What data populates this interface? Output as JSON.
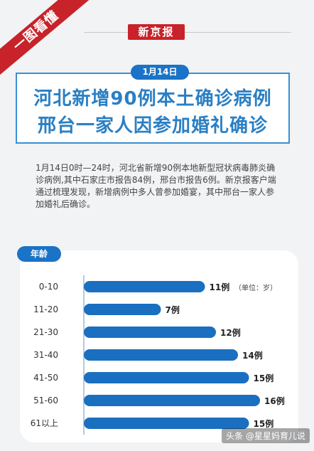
{
  "header": {
    "ribbon_text": "一图看懂",
    "masthead": "新京报",
    "date": "1月14日"
  },
  "headline": {
    "line1": "河北新增90例本土确诊病例",
    "line2": "邢台一家人因参加婚礼确诊"
  },
  "body_text": "1月14日0时—24时，河北省新增90例本地新型冠状病毒肺炎确诊病例,其中石家庄市报告84例，邢台市报告6例。新京报客户端通过梳理发现，新增病例中多人曾参加婚宴，其中邢台一家人参加婚礼后确诊。",
  "chart_header_label": "年龄",
  "unit_label": "（单位：岁）",
  "watermark": "头条 @星星妈育儿说",
  "colors": {
    "accent": "#1a73c6",
    "headline_text": "#2a7fc4",
    "red": "#c8222a",
    "bar_color": "#1a6fc0"
  },
  "chart_data": {
    "type": "bar",
    "orientation": "horizontal",
    "categories": [
      "0-10",
      "11-20",
      "21-30",
      "31-40",
      "41-50",
      "51-60",
      "61以上"
    ],
    "values": [
      11,
      7,
      12,
      14,
      15,
      16,
      15
    ],
    "value_labels": [
      "11例",
      "7例",
      "12例",
      "14例",
      "15例",
      "16例",
      "15例"
    ],
    "xlim": [
      0,
      16
    ],
    "grid": false
  }
}
